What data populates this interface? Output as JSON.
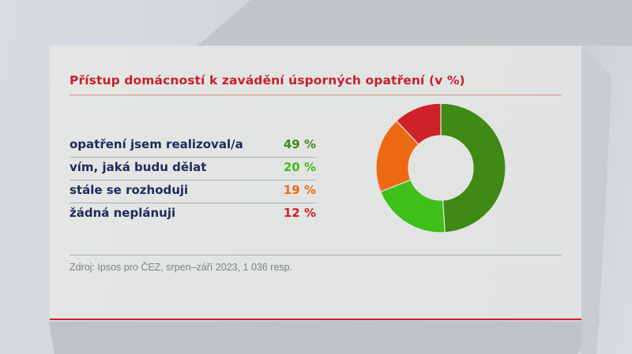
{
  "title": "Přístup domácností k zavádění úsporných opatření (v %)",
  "source": "Zdroj: Ipsos pro ČEZ, srpen–září 2023, 1 036 resp.",
  "legend": [
    {
      "label": "opatření jsem realizoval/a",
      "value": "49 %",
      "color": "#3e8a14"
    },
    {
      "label": "vím, jaká budu dělat",
      "value": "20 %",
      "color": "#3fbf18"
    },
    {
      "label": "stále se rozhoduji",
      "value": "19 %",
      "color": "#ee6a12"
    },
    {
      "label": "žádná neplánuji",
      "value": "12 %",
      "color": "#cf2129"
    }
  ],
  "colors": {
    "title": "#c8202c",
    "label": "#1f2a5c",
    "accent_line": "#d1202c"
  },
  "chart_data": {
    "type": "pie",
    "variant": "donut",
    "title": "Přístup domácností k zavádění úsporných opatření (v %)",
    "categories": [
      "opatření jsem realizoval/a",
      "vím, jaká budu dělat",
      "stále se rozhoduji",
      "žádná neplánuji"
    ],
    "values": [
      49,
      20,
      19,
      12
    ],
    "colors": [
      "#3e8a14",
      "#3fbf18",
      "#ee6a12",
      "#cf2129"
    ],
    "unit": "%",
    "start_angle_deg": 0,
    "direction": "clockwise",
    "legend_position": "left",
    "source": "Zdroj: Ipsos pro ČEZ, srpen–září 2023, 1 036 resp."
  }
}
